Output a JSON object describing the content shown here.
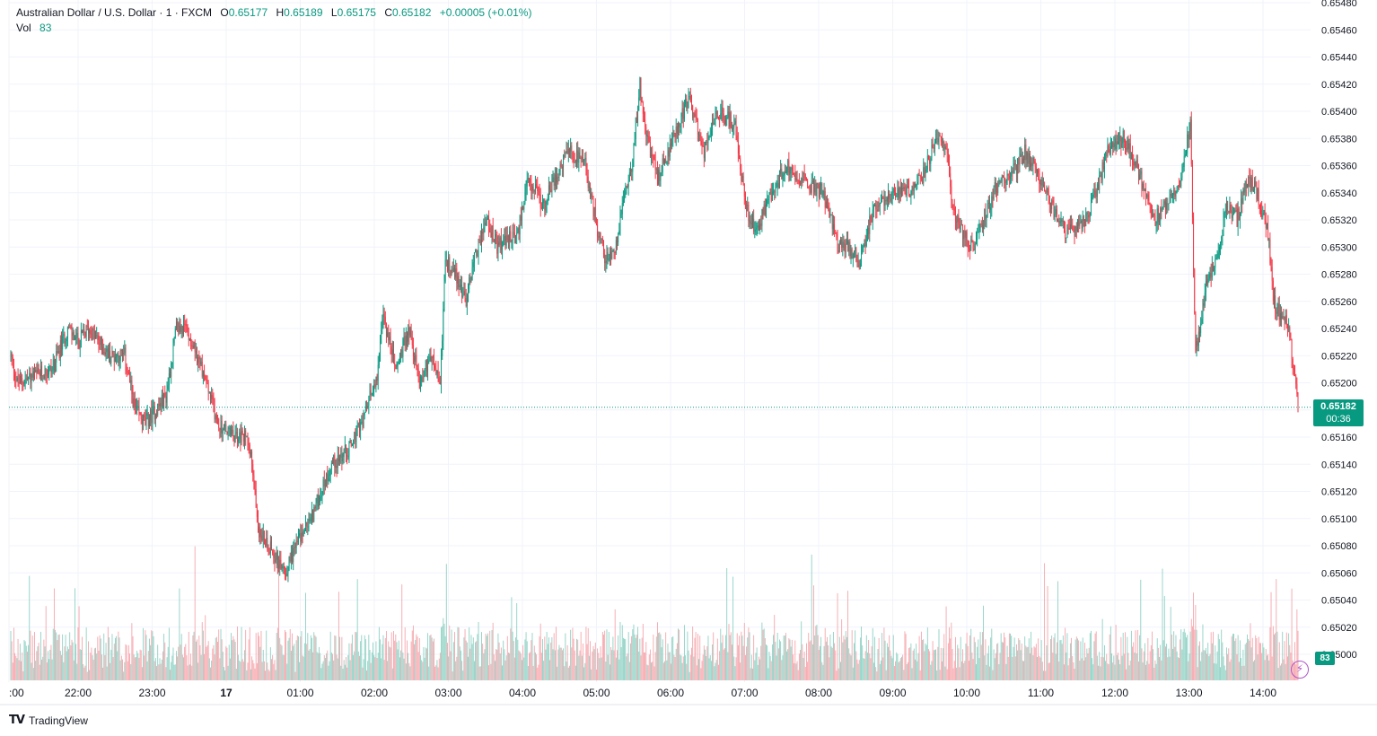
{
  "header": {
    "symbol": "Australian Dollar / U.S. Dollar · 1 · FXCM",
    "open_label": "O",
    "open": "0.65177",
    "high_label": "H",
    "high": "0.65189",
    "low_label": "L",
    "low": "0.65175",
    "close_label": "C",
    "close": "0.65182",
    "change": "+0.00005 (+0.01%)",
    "vol_label": "Vol",
    "vol": "83"
  },
  "price_tag": {
    "price": "0.65182",
    "countdown": "00:36"
  },
  "volume_tag": "83",
  "brand": {
    "logo": "TV",
    "name": "TradingView"
  },
  "colors": {
    "up": "#089981",
    "down": "#f23645",
    "vol_up": "#8fd1c4",
    "vol_down": "#f5a6ac",
    "grid": "#f0f3fa",
    "bolt": "#b057c9"
  },
  "icons": {
    "alert": "lightning-icon",
    "logo": "tradingview-logo-icon"
  },
  "chart_data": {
    "type": "candlestick",
    "interval": "1 minute",
    "ylim": [
      0.6499,
      0.6548
    ],
    "y_ticks": [
      "0.65480",
      "0.65460",
      "0.65440",
      "0.65420",
      "0.65400",
      "0.65380",
      "0.65360",
      "0.65340",
      "0.65320",
      "0.65300",
      "0.65280",
      "0.65260",
      "0.65240",
      "0.65220",
      "0.65200",
      "0.65180",
      "0.65160",
      "0.65140",
      "0.65120",
      "0.65100",
      "0.65080",
      "0.65060",
      "0.65040",
      "0.65020",
      "0.65000"
    ],
    "x_ticks": [
      ":00",
      "22:00",
      "23:00",
      "17",
      "01:00",
      "02:00",
      "03:00",
      "04:00",
      "05:00",
      "06:00",
      "07:00",
      "08:00",
      "09:00",
      "10:00",
      "11:00",
      "12:00",
      "13:00",
      "14:00"
    ],
    "last_price": 0.65182,
    "price_path": [
      [
        0,
        0.6522
      ],
      [
        6,
        0.652
      ],
      [
        40,
        0.6521
      ],
      [
        55,
        0.6524
      ],
      [
        65,
        0.6523
      ],
      [
        75,
        0.6524
      ],
      [
        95,
        0.6522
      ],
      [
        110,
        0.6522
      ],
      [
        120,
        0.6518
      ],
      [
        130,
        0.6517
      ],
      [
        150,
        0.6519
      ],
      [
        160,
        0.6524
      ],
      [
        170,
        0.6524
      ],
      [
        185,
        0.6521
      ],
      [
        200,
        0.6517
      ],
      [
        215,
        0.6516
      ],
      [
        230,
        0.6516
      ],
      [
        240,
        0.6509
      ],
      [
        250,
        0.6508
      ],
      [
        265,
        0.6506
      ],
      [
        275,
        0.6508
      ],
      [
        290,
        0.651
      ],
      [
        300,
        0.6512
      ],
      [
        310,
        0.6514
      ],
      [
        325,
        0.6515
      ],
      [
        340,
        0.6517
      ],
      [
        355,
        0.6521
      ],
      [
        360,
        0.6525
      ],
      [
        372,
        0.6521
      ],
      [
        385,
        0.6524
      ],
      [
        395,
        0.652
      ],
      [
        405,
        0.6522
      ],
      [
        415,
        0.652
      ],
      [
        420,
        0.6529
      ],
      [
        430,
        0.6528
      ],
      [
        440,
        0.6526
      ],
      [
        447,
        0.6529
      ],
      [
        460,
        0.6532
      ],
      [
        470,
        0.653
      ],
      [
        490,
        0.6531
      ],
      [
        500,
        0.6535
      ],
      [
        515,
        0.6533
      ],
      [
        525,
        0.6535
      ],
      [
        540,
        0.6537
      ],
      [
        555,
        0.6536
      ],
      [
        565,
        0.6532
      ],
      [
        575,
        0.6529
      ],
      [
        585,
        0.653
      ],
      [
        590,
        0.6533
      ],
      [
        600,
        0.6536
      ],
      [
        608,
        0.6542
      ],
      [
        615,
        0.6538
      ],
      [
        625,
        0.6535
      ],
      [
        640,
        0.6538
      ],
      [
        650,
        0.654
      ],
      [
        655,
        0.6541
      ],
      [
        670,
        0.6537
      ],
      [
        685,
        0.654
      ],
      [
        700,
        0.6539
      ],
      [
        710,
        0.6533
      ],
      [
        720,
        0.6531
      ],
      [
        735,
        0.6534
      ],
      [
        750,
        0.6536
      ],
      [
        765,
        0.6535
      ],
      [
        785,
        0.6534
      ],
      [
        800,
        0.653
      ],
      [
        810,
        0.653
      ],
      [
        820,
        0.6529
      ],
      [
        835,
        0.6533
      ],
      [
        850,
        0.6534
      ],
      [
        865,
        0.6534
      ],
      [
        880,
        0.6535
      ],
      [
        895,
        0.6538
      ],
      [
        905,
        0.6537
      ],
      [
        910,
        0.6533
      ],
      [
        920,
        0.6531
      ],
      [
        930,
        0.653
      ],
      [
        945,
        0.6533
      ],
      [
        955,
        0.6535
      ],
      [
        965,
        0.6535
      ],
      [
        980,
        0.6537
      ],
      [
        990,
        0.6536
      ],
      [
        1000,
        0.6534
      ],
      [
        1020,
        0.6531
      ],
      [
        1040,
        0.6532
      ],
      [
        1060,
        0.6537
      ],
      [
        1075,
        0.6538
      ],
      [
        1088,
        0.6536
      ],
      [
        1105,
        0.6532
      ],
      [
        1115,
        0.6533
      ],
      [
        1130,
        0.6535
      ],
      [
        1140,
        0.6539
      ],
      [
        1145,
        0.6522
      ],
      [
        1155,
        0.6527
      ],
      [
        1165,
        0.6529
      ],
      [
        1175,
        0.6533
      ],
      [
        1185,
        0.6532
      ],
      [
        1195,
        0.6535
      ],
      [
        1205,
        0.6534
      ],
      [
        1215,
        0.6531
      ],
      [
        1220,
        0.6526
      ],
      [
        1235,
        0.6524
      ],
      [
        1244,
        0.6518
      ]
    ]
  }
}
